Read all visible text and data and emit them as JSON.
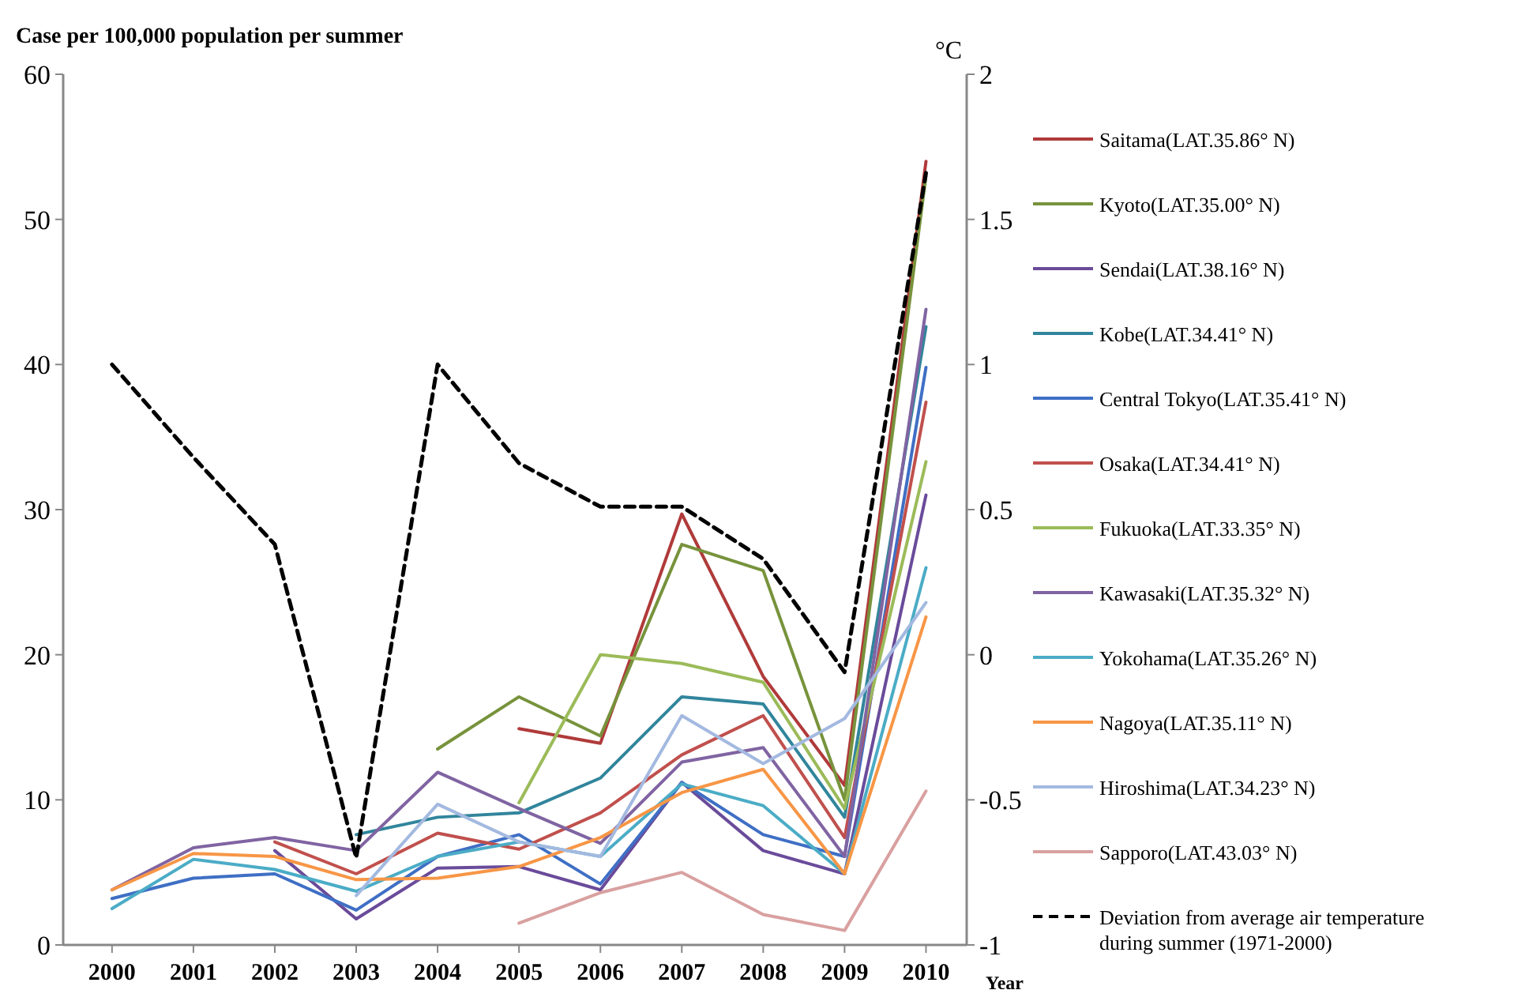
{
  "chart_data": {
    "type": "line",
    "ylabel": "Case per 100,000  population per summer",
    "y2label": "°C",
    "xlabel": "Year",
    "x": [
      2000,
      2001,
      2002,
      2003,
      2004,
      2005,
      2006,
      2007,
      2008,
      2009,
      2010
    ],
    "xlim": [
      1999.4,
      2010.5
    ],
    "xticks": [
      2000,
      2001,
      2002,
      2003,
      2004,
      2005,
      2006,
      2007,
      2008,
      2009,
      2010
    ],
    "ylim": [
      0,
      60
    ],
    "yticks": [
      0,
      10,
      20,
      30,
      40,
      50,
      60
    ],
    "y2lim": [
      -1,
      2
    ],
    "y2ticks": [
      -1,
      -0.5,
      0,
      0.5,
      1,
      1.5,
      2
    ],
    "legend": "right",
    "grid": false,
    "marker": "none",
    "line_style": "solid",
    "series": [
      {
        "name": "Saitama(LAT.35.86° N)",
        "color": "#b03a3a",
        "values": [
          null,
          null,
          null,
          null,
          null,
          14.9,
          13.9,
          29.7,
          18.5,
          11,
          54
        ]
      },
      {
        "name": "Kyoto(LAT.35.00° N)",
        "color": "#77933c",
        "values": [
          null,
          null,
          null,
          null,
          13.5,
          17.1,
          14.4,
          27.6,
          25.8,
          10,
          53
        ]
      },
      {
        "name": "Sendai(LAT.38.16° N)",
        "color": "#6a4b9a",
        "values": [
          null,
          null,
          6.5,
          1.8,
          5.3,
          5.4,
          3.8,
          11.2,
          6.5,
          4.9,
          31
        ]
      },
      {
        "name": "Kobe(LAT.34.41° N)",
        "color": "#31859c",
        "values": [
          null,
          null,
          null,
          7.6,
          8.8,
          9.1,
          11.5,
          17.1,
          16.6,
          8.8,
          42.6
        ]
      },
      {
        "name": "Central Tokyo(LAT.35.41° N)",
        "color": "#3f6fc5",
        "values": [
          3.2,
          4.6,
          4.9,
          2.4,
          6.1,
          7.6,
          4.2,
          11.2,
          7.6,
          6.1,
          39.8
        ]
      },
      {
        "name": "Osaka(LAT.34.41° N)",
        "color": "#c0504d",
        "values": [
          null,
          null,
          7.1,
          4.9,
          7.7,
          6.6,
          9.1,
          13.1,
          15.8,
          7.4,
          37.4
        ]
      },
      {
        "name": "Fukuoka(LAT.33.35° N)",
        "color": "#9bbb59",
        "values": [
          null,
          null,
          null,
          null,
          null,
          9.8,
          20,
          19.4,
          18.1,
          9.4,
          33.3
        ]
      },
      {
        "name": "Kawasaki(LAT.35.32° N)",
        "color": "#8064a2",
        "values": [
          3.8,
          6.7,
          7.4,
          6.5,
          11.9,
          9.4,
          7,
          12.6,
          13.6,
          6.1,
          43.8
        ]
      },
      {
        "name": "Yokohama(LAT.35.26° N)",
        "color": "#4bacc6",
        "values": [
          2.5,
          5.9,
          5.2,
          3.7,
          6.1,
          7.1,
          6.1,
          11.1,
          9.6,
          4.9,
          26
        ]
      },
      {
        "name": "Nagoya(LAT.35.11° N)",
        "color": "#f79646",
        "values": [
          3.8,
          6.3,
          6.1,
          4.5,
          4.6,
          5.4,
          7.4,
          10.5,
          12.1,
          4.9,
          22.6
        ]
      },
      {
        "name": "Hiroshima(LAT.34.23° N)",
        "color": "#a3b9e0",
        "values": [
          null,
          null,
          null,
          3.4,
          9.7,
          7.1,
          6.1,
          15.8,
          12.5,
          15.6,
          23.6
        ]
      },
      {
        "name": "Sapporo(LAT.43.03° N)",
        "color": "#d9a0a0",
        "values": [
          null,
          null,
          null,
          null,
          null,
          1.5,
          3.6,
          5,
          2.1,
          1,
          10.6
        ]
      },
      {
        "name": "Deviation from average air temperature during summer (1971-2000)",
        "color": "#000000",
        "axis": "y2",
        "line_style": "dashed",
        "values": [
          1,
          0.68,
          0.38,
          -0.7,
          1,
          0.66,
          0.51,
          0.51,
          0.33,
          -0.06,
          1.66
        ]
      }
    ]
  }
}
